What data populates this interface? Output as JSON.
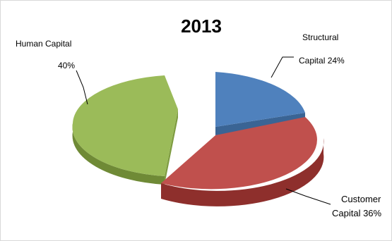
{
  "chart_data": {
    "type": "pie",
    "style": "exploded-3d",
    "title": "2013",
    "categories": [
      "Structural Capital",
      "Customer Capital",
      "Human Capital"
    ],
    "values": [
      24,
      36,
      40
    ],
    "colors": [
      "#4f81bd",
      "#c0504d",
      "#9bbb59"
    ],
    "labels": {
      "structural_line1": "Structural",
      "structural_line2": "Capital  24%",
      "human_line1": "Human Capital",
      "human_line2": "40%",
      "customer_line1": "Customer",
      "customer_line2": "Capital 36%"
    },
    "legend": "none"
  }
}
